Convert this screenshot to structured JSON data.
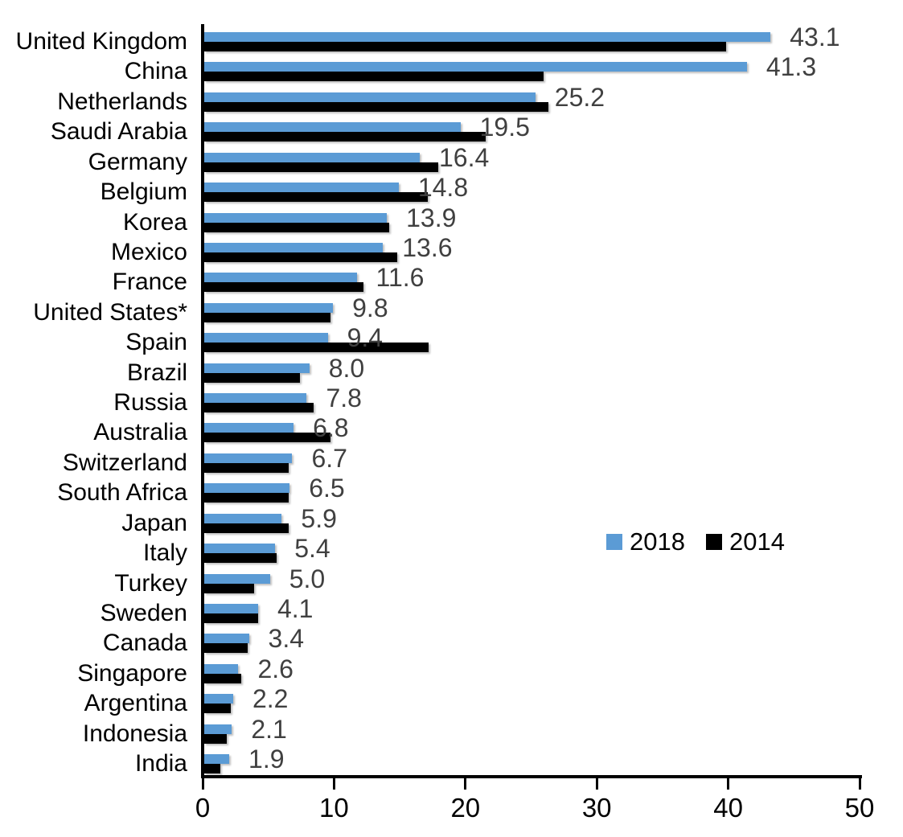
{
  "chart_data": {
    "type": "bar",
    "orientation": "horizontal",
    "title": "",
    "xlabel": "",
    "ylabel": "",
    "xlim": [
      0,
      50
    ],
    "xticks": [
      "0",
      "10",
      "20",
      "30",
      "40",
      "50"
    ],
    "grid": false,
    "legend_position": "middle-right",
    "value_label_color": "#404040",
    "categories": [
      "United Kingdom",
      "China",
      "Netherlands",
      "Saudi Arabia",
      "Germany",
      "Belgium",
      "Korea",
      "Mexico",
      "France",
      "United States*",
      "Spain",
      "Brazil",
      "Russia",
      "Australia",
      "Switzerland",
      "South Africa",
      "Japan",
      "Italy",
      "Turkey",
      "Sweden",
      "Canada",
      "Singapore",
      "Argentina",
      "Indonesia",
      "India"
    ],
    "series": [
      {
        "name": "2018",
        "color": "#5B9BD5",
        "values": [
          43.1,
          41.3,
          25.2,
          19.5,
          16.4,
          14.8,
          13.9,
          13.6,
          11.6,
          9.8,
          9.4,
          8.0,
          7.8,
          6.8,
          6.7,
          6.5,
          5.9,
          5.4,
          5.0,
          4.1,
          3.4,
          2.6,
          2.2,
          2.1,
          1.9
        ],
        "data_labels": [
          "43.1",
          "41.3",
          "25.2",
          "19.5",
          "16.4",
          "14.8",
          "13.9",
          "13.6",
          "11.6",
          "9.8",
          "9.4",
          "8.0",
          "7.8",
          "6.8",
          "6.7",
          "6.5",
          "5.9",
          "5.4",
          "5.0",
          "4.1",
          "3.4",
          "2.6",
          "2.2",
          "2.1",
          "1.9"
        ]
      },
      {
        "name": "2014",
        "color": "#000000",
        "values": [
          39.7,
          25.8,
          26.2,
          21.4,
          17.8,
          17.0,
          14.1,
          14.7,
          12.1,
          9.6,
          17.1,
          7.3,
          8.3,
          9.6,
          6.4,
          6.4,
          6.4,
          5.5,
          3.8,
          4.1,
          3.3,
          2.8,
          2.0,
          1.7,
          1.2
        ]
      }
    ],
    "legend": {
      "entries": [
        {
          "label": "2018",
          "color": "#5B9BD5"
        },
        {
          "label": "2014",
          "color": "#000000"
        }
      ]
    }
  }
}
